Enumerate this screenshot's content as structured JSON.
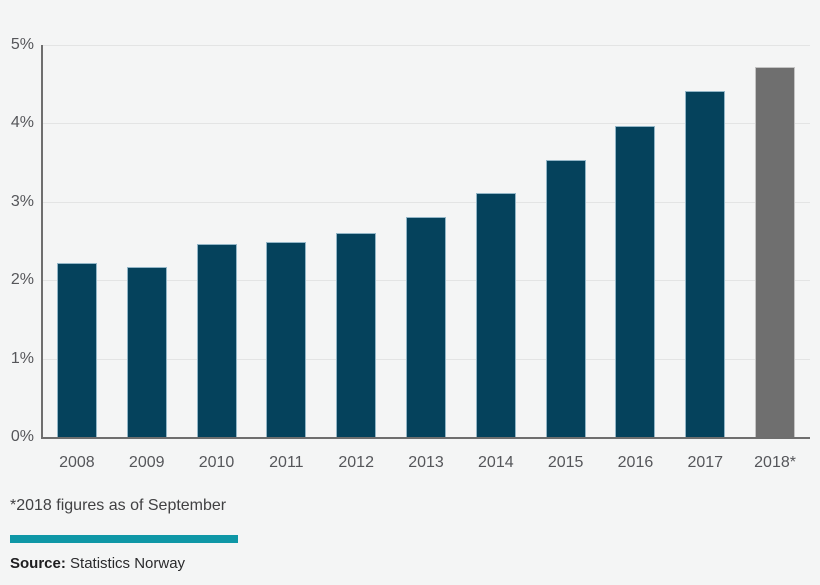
{
  "chart_data": {
    "type": "bar",
    "categories": [
      "2008",
      "2009",
      "2010",
      "2011",
      "2012",
      "2013",
      "2014",
      "2015",
      "2016",
      "2017",
      "2018*"
    ],
    "values": [
      2.22,
      2.17,
      2.46,
      2.49,
      2.6,
      2.8,
      3.11,
      3.53,
      3.97,
      4.41,
      4.72
    ],
    "title": "",
    "xlabel": "",
    "ylabel": "",
    "y_tick_labels": [
      "0%",
      "1%",
      "2%",
      "3%",
      "4%",
      "5%"
    ],
    "ylim": [
      0,
      5
    ],
    "grid": true,
    "legend": "none",
    "highlight_index": 10,
    "bar_color": "#05425c",
    "highlight_bar_color": "#6f6f6f"
  },
  "footnote": "*2018 figures as of September",
  "source": {
    "label": "Source:",
    "text": " Statistics Norway"
  },
  "colors": {
    "background": "#f4f5f5",
    "axis": "#6e6e6e",
    "gridline": "#e3e4e4",
    "tick_text": "#55565a",
    "divider_rule": "#0e97a6"
  }
}
